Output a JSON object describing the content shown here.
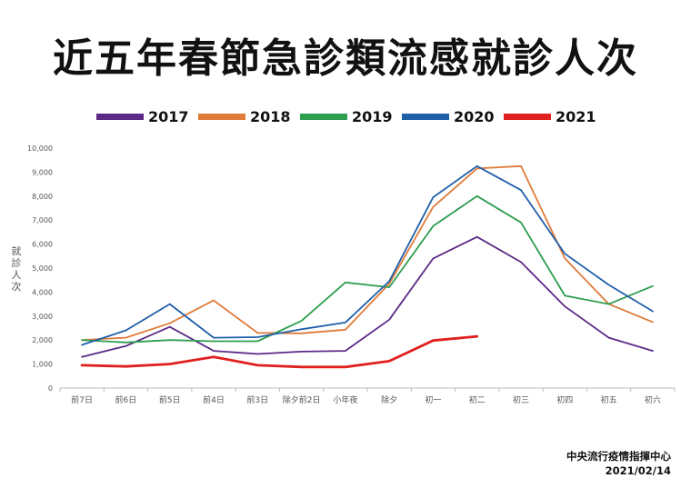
{
  "chart_data": {
    "type": "line",
    "title": "近五年春節急診類流感就診人次",
    "ylabel": "就診人次",
    "ylim": [
      0,
      10000
    ],
    "yticks": [
      "0",
      "1,000",
      "2,000",
      "3,000",
      "4,000",
      "5,000",
      "6,000",
      "7,000",
      "8,000",
      "9,000",
      "10,000"
    ],
    "categories": [
      "前7日",
      "前6日",
      "前5日",
      "前4日",
      "前3日",
      "除夕前2日",
      "小年夜",
      "除夕",
      "初一",
      "初二",
      "初三",
      "初四",
      "初五",
      "初六"
    ],
    "legend_position": "top",
    "grid": false,
    "series": [
      {
        "name": "2017",
        "color": "#5b2a86",
        "width": 1.8,
        "values": [
          1300,
          1750,
          2550,
          1550,
          1420,
          1520,
          1550,
          2850,
          5400,
          6300,
          5250,
          3400,
          2100,
          1550
        ]
      },
      {
        "name": "2018",
        "color": "#e07b39",
        "width": 1.8,
        "values": [
          2000,
          2100,
          2700,
          3650,
          2300,
          2280,
          2430,
          4350,
          7550,
          9150,
          9250,
          5400,
          3500,
          2750
        ]
      },
      {
        "name": "2019",
        "color": "#2e9e4f",
        "width": 1.8,
        "values": [
          2000,
          1900,
          2000,
          1950,
          1950,
          2800,
          4400,
          4200,
          6750,
          8000,
          6900,
          3850,
          3500,
          4250
        ]
      },
      {
        "name": "2020",
        "color": "#1f5fa8",
        "width": 1.8,
        "values": [
          1800,
          2400,
          3500,
          2100,
          2120,
          2450,
          2730,
          4450,
          7950,
          9250,
          8250,
          5600,
          4300,
          3200
        ]
      },
      {
        "name": "2021",
        "color": "#e0201e",
        "width": 2.8,
        "values": [
          950,
          900,
          1000,
          1300,
          950,
          880,
          880,
          1120,
          1980,
          2150,
          null,
          null,
          null,
          null
        ]
      }
    ]
  },
  "footer": {
    "org": "中央流行疫情指揮中心",
    "date": "2021/02/14"
  }
}
